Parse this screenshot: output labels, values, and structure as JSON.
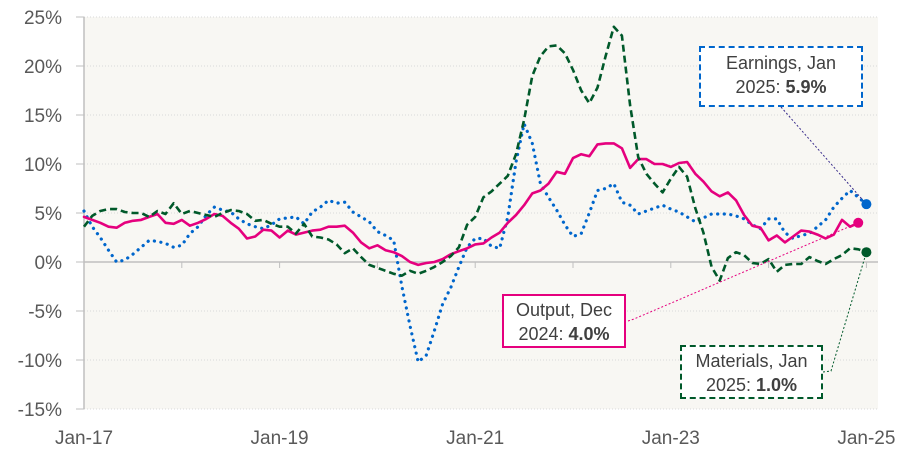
{
  "chart_data": {
    "type": "line",
    "title": "",
    "xlabel": "",
    "ylabel": "",
    "ylim": [
      -15,
      25
    ],
    "yticks": [
      "25%",
      "20%",
      "15%",
      "10%",
      "5%",
      "0%",
      "-5%",
      "-10%",
      "-15%"
    ],
    "ytick_values": [
      25,
      20,
      15,
      10,
      5,
      0,
      -5,
      -10,
      -15
    ],
    "xlim": [
      "2017-01",
      "2025-01"
    ],
    "xticks": [
      "Jan-17",
      "Jan-19",
      "Jan-21",
      "Jan-23",
      "Jan-25"
    ],
    "x_start": "2017-01",
    "x_frequency": "monthly",
    "grid": true,
    "background": "#F8F7F3",
    "series": [
      {
        "key": "earnings",
        "color": "#0066CC",
        "style": "dotted",
        "values": [
          5.2,
          3.6,
          2.5,
          1.2,
          0.0,
          0.2,
          0.8,
          1.5,
          2.2,
          2.1,
          1.9,
          1.5,
          1.7,
          2.9,
          3.6,
          4.8,
          5.6,
          5.3,
          5.1,
          4.4,
          3.9,
          3.6,
          3.4,
          3.8,
          4.4,
          4.5,
          4.6,
          3.9,
          5.1,
          5.6,
          6.3,
          6.0,
          6.1,
          5.1,
          4.6,
          4.1,
          3.1,
          2.7,
          2.2,
          -2.5,
          -6.5,
          -10.2,
          -9.5,
          -7.0,
          -4.3,
          -2.6,
          -0.5,
          1.5,
          2.4,
          2.4,
          1.6,
          1.4,
          4.6,
          10.2,
          14.1,
          12.1,
          8.0,
          6.6,
          5.3,
          3.8,
          2.6,
          2.9,
          5.0,
          7.3,
          7.5,
          8.0,
          6.1,
          5.8,
          4.9,
          5.2,
          5.5,
          5.8,
          5.4,
          5.1,
          4.6,
          4.1,
          4.5,
          4.9,
          4.9,
          4.9,
          4.7,
          4.4,
          3.8,
          3.4,
          4.4,
          4.4,
          3.0,
          2.4,
          2.7,
          2.9,
          3.6,
          4.3,
          5.6,
          6.5,
          7.3,
          6.6,
          5.9
        ]
      },
      {
        "key": "output",
        "color": "#E5007E",
        "style": "solid",
        "values": [
          4.6,
          4.3,
          4.0,
          3.6,
          3.5,
          4.0,
          4.2,
          4.3,
          4.6,
          4.9,
          4.0,
          3.9,
          4.3,
          3.7,
          4.0,
          4.4,
          4.9,
          4.7,
          4.0,
          3.4,
          2.4,
          2.6,
          3.3,
          3.2,
          2.5,
          3.2,
          2.8,
          3.0,
          3.2,
          3.3,
          3.6,
          3.6,
          3.7,
          3.0,
          2.0,
          1.4,
          1.7,
          1.2,
          1.0,
          0.6,
          0.0,
          -0.3,
          -0.1,
          0.0,
          0.3,
          0.8,
          1.1,
          1.4,
          1.8,
          1.9,
          2.5,
          3.0,
          4.0,
          4.8,
          5.8,
          7.0,
          7.3,
          8.0,
          9.2,
          9.0,
          10.6,
          11.0,
          10.8,
          12.0,
          12.1,
          12.1,
          11.6,
          9.6,
          10.5,
          10.5,
          10.0,
          10.0,
          9.7,
          10.1,
          10.2,
          9.0,
          8.2,
          7.2,
          6.7,
          7.1,
          6.3,
          4.8,
          3.7,
          3.5,
          2.2,
          2.7,
          2.0,
          2.6,
          3.2,
          3.1,
          2.8,
          2.4,
          2.8,
          4.3,
          3.6,
          4.0
        ]
      },
      {
        "key": "materials",
        "color": "#00592A",
        "style": "dashed",
        "values": [
          3.6,
          4.7,
          5.2,
          5.4,
          5.4,
          5.1,
          5.0,
          5.0,
          4.6,
          5.2,
          4.9,
          6.0,
          4.9,
          5.2,
          5.0,
          4.8,
          4.6,
          5.0,
          5.3,
          5.2,
          4.9,
          4.2,
          4.3,
          3.9,
          3.6,
          3.6,
          2.9,
          3.9,
          2.6,
          2.5,
          2.3,
          1.8,
          0.9,
          1.4,
          0.5,
          -0.3,
          -0.6,
          -0.9,
          -1.2,
          -1.4,
          -0.9,
          -1.2,
          -0.9,
          -0.5,
          0.0,
          0.6,
          1.5,
          3.8,
          4.6,
          6.6,
          7.2,
          8.0,
          8.8,
          11.0,
          14.5,
          19.0,
          21.0,
          22.0,
          22.1,
          21.3,
          19.6,
          17.5,
          16.2,
          17.8,
          21.0,
          24.0,
          23.1,
          16.0,
          10.7,
          9.0,
          8.0,
          7.1,
          8.5,
          9.7,
          8.7,
          5.5,
          3.0,
          -0.5,
          -1.9,
          0.4,
          1.0,
          0.7,
          -0.1,
          -0.2,
          0.3,
          -1.0,
          -0.3,
          -0.2,
          -0.2,
          0.5,
          0.1,
          -0.2,
          0.3,
          0.7,
          1.4,
          1.3,
          1.0
        ]
      }
    ],
    "annotations": {
      "earnings": {
        "line1": "Earnings, Jan",
        "line2": "2025: ",
        "value": "5.9%"
      },
      "output": {
        "line1": "Output, Dec",
        "line2": "2024: ",
        "value": "4.0%"
      },
      "materials": {
        "line1": "Materials, Jan",
        "line2": "2025: ",
        "value": "1.0%"
      }
    }
  }
}
